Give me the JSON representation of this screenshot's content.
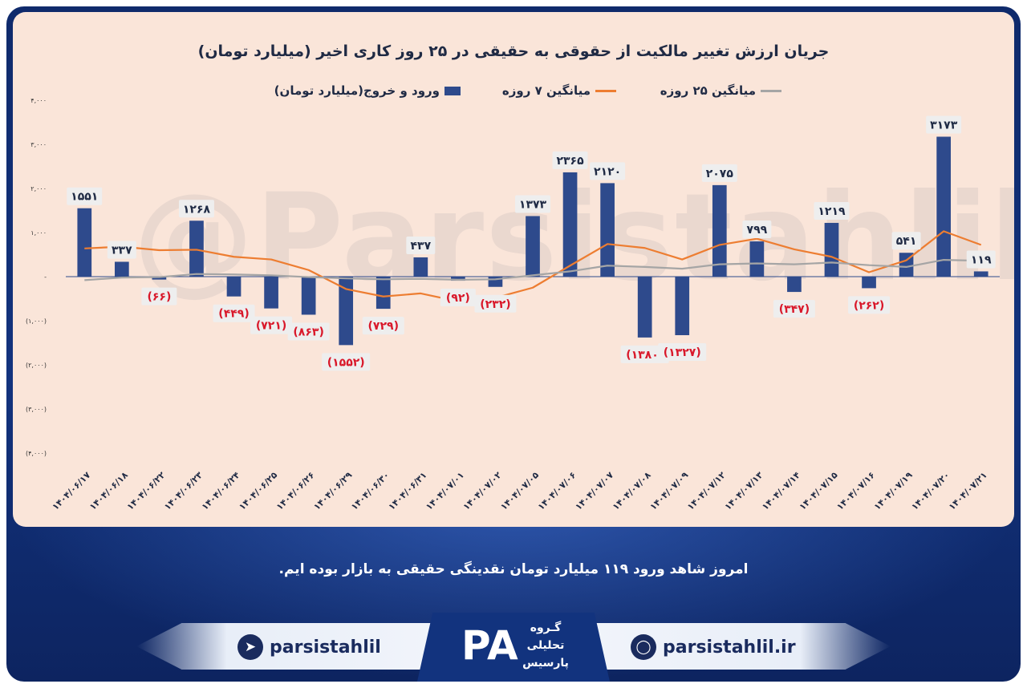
{
  "chart_data": {
    "type": "bar",
    "title": "جریان ارزش تغییر مالکیت از حقوقی به حقیقی در ۲۵ روز کاری اخیر (میلیارد تومان)",
    "categories": [
      "۱۴۰۴/۰۶/۱۷",
      "۱۴۰۴/۰۶/۱۸",
      "۱۴۰۴/۰۶/۲۲",
      "۱۴۰۴/۰۶/۲۳",
      "۱۴۰۴/۰۶/۲۴",
      "۱۴۰۴/۰۶/۲۵",
      "۱۴۰۴/۰۶/۲۶",
      "۱۴۰۴/۰۶/۲۹",
      "۱۴۰۴/۰۶/۳۰",
      "۱۴۰۴/۰۶/۳۱",
      "۱۴۰۴/۰۷/۰۱",
      "۱۴۰۴/۰۷/۰۲",
      "۱۴۰۴/۰۷/۰۵",
      "۱۴۰۴/۰۷/۰۶",
      "۱۴۰۴/۰۷/۰۷",
      "۱۴۰۴/۰۷/۰۸",
      "۱۴۰۴/۰۷/۰۹",
      "۱۴۰۴/۰۷/۱۲",
      "۱۴۰۴/۰۷/۱۳",
      "۱۴۰۴/۰۷/۱۴",
      "۱۴۰۴/۰۷/۱۵",
      "۱۴۰۴/۰۷/۱۶",
      "۱۴۰۴/۰۷/۱۹",
      "۱۴۰۴/۰۷/۲۰",
      "۱۴۰۴/۰۷/۲۱"
    ],
    "series": [
      {
        "name": "ورود و خروج(میلیارد تومان)",
        "kind": "bar",
        "color": "#2e4a8c",
        "values": [
          1551,
          337,
          -66,
          1268,
          -449,
          -721,
          -863,
          -1552,
          -729,
          437,
          -92,
          -232,
          1373,
          2365,
          2120,
          -1380,
          -1327,
          2075,
          799,
          -347,
          1219,
          -262,
          541,
          3173,
          119
        ]
      },
      {
        "name": "میانگین ۷ روزه",
        "kind": "line",
        "color": "#ed7d31",
        "values": [
          640,
          680,
          600,
          610,
          450,
          390,
          150,
          -280,
          -450,
          -380,
          -560,
          -480,
          -250,
          250,
          740,
          650,
          390,
          720,
          860,
          620,
          450,
          100,
          370,
          1030,
          720
        ]
      },
      {
        "name": "میانگین ۲۵ روزه",
        "kind": "line",
        "color": "#a5a5a5",
        "values": [
          -80,
          -20,
          -10,
          60,
          50,
          30,
          -10,
          -40,
          -60,
          -50,
          -70,
          -60,
          30,
          120,
          250,
          220,
          180,
          280,
          300,
          280,
          320,
          260,
          220,
          380,
          360
        ]
      }
    ],
    "data_labels": [
      "۱۵۵۱",
      "۳۳۷",
      "(۶۶)",
      "۱۲۶۸",
      "(۴۴۹)",
      "(۷۲۱)",
      "(۸۶۳)",
      "(۱۵۵۲)",
      "(۷۲۹)",
      "۴۳۷",
      "(۹۲)",
      "(۲۳۲)",
      "۱۳۷۳",
      "۲۳۶۵",
      "۲۱۲۰",
      "(۱۳۸۰)",
      "(۱۳۲۷)",
      "۲۰۷۵",
      "۷۹۹",
      "(۳۴۷)",
      "۱۲۱۹",
      "(۲۶۲)",
      "۵۴۱",
      "۳۱۷۳",
      "۱۱۹"
    ],
    "yticks": [
      4000,
      3000,
      2000,
      1000,
      0,
      -1000,
      -2000,
      -3000,
      -4000
    ],
    "ytick_labels": [
      "۴,۰۰۰",
      "۳,۰۰۰",
      "۲,۰۰۰",
      "۱,۰۰۰",
      "-",
      "(۱,۰۰۰)",
      "(۲,۰۰۰)",
      "(۳,۰۰۰)",
      "(۴,۰۰۰)"
    ],
    "ylim": [
      -4000,
      4000
    ],
    "xlabel": "",
    "ylabel": "",
    "grid": false,
    "legend_position": "top"
  },
  "legend": {
    "bar_label": "ورود و خروج(میلیارد تومان)",
    "ma7_label": "میانگین ۷ روزه",
    "ma25_label": "میانگین ۲۵ روزه"
  },
  "watermark": "@Parsistahlil",
  "caption": "امروز شاهد ورود ۱۱۹ میلیارد تومان نقدینگی حقیقی به بازار بوده ایم.",
  "footer": {
    "telegram_handle": "parsistahlil",
    "website": "parsistahlil.ir",
    "logo_letters": "PA",
    "logo_line1": "گـروه",
    "logo_line2": "تحلیلی",
    "logo_line3": "پارسیس"
  },
  "colors": {
    "bar": "#2e4a8c",
    "ma7": "#ed7d31",
    "ma25": "#a5a5a5",
    "negative_label": "#d9182a",
    "panel": "#fae5d9",
    "frame": "#12337e"
  }
}
